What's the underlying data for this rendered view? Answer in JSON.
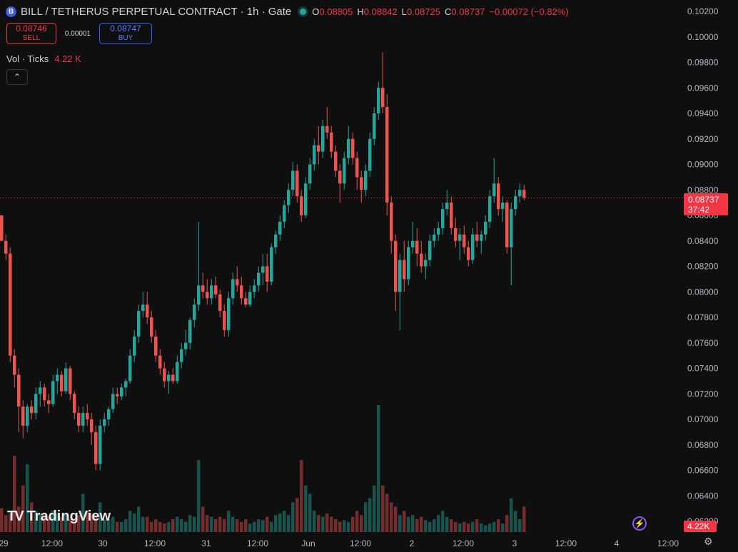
{
  "header": {
    "symbol_icon": "B",
    "title": "BILL / TETHERUS PERPETUAL CONTRACT · 1h · Gate",
    "ohlc": [
      {
        "key": "O",
        "value": "0.08805"
      },
      {
        "key": "H",
        "value": "0.08842"
      },
      {
        "key": "L",
        "value": "0.08725"
      },
      {
        "key": "C",
        "value": "0.08737"
      },
      {
        "key": "",
        "value": "−0.00072 (−0.82%)"
      }
    ]
  },
  "trade": {
    "sell_price": "0.08746",
    "sell_label": "SELL",
    "spread": "0.00001",
    "buy_price": "0.08747",
    "buy_label": "BUY"
  },
  "volume": {
    "label": "Vol · Ticks",
    "value": "4.22 K",
    "tag": "4.22K"
  },
  "collapse_icon": "chevron-up-icon",
  "current_price": {
    "price": "0.08737",
    "countdown": "37:42"
  },
  "logo": {
    "mark": "TV",
    "text": "TradingView"
  },
  "colors": {
    "up": "#26a69a",
    "down": "#ef5350",
    "background": "#0f0f0f",
    "price_tag": "#f23645"
  },
  "chart_data": {
    "type": "candlestick",
    "y_axis": {
      "ticks": [
        "0.10200",
        "0.10000",
        "0.09800",
        "0.09600",
        "0.09400",
        "0.09200",
        "0.09000",
        "0.08800",
        "0.08600",
        "0.08400",
        "0.08200",
        "0.08000",
        "0.07800",
        "0.07600",
        "0.07400",
        "0.07200",
        "0.07000",
        "0.06800",
        "0.06600",
        "0.06400",
        "0.06200"
      ],
      "range": [
        0.062,
        0.102
      ]
    },
    "x_axis": {
      "ticks": [
        "29",
        "12:00",
        "30",
        "12:00",
        "31",
        "12:00",
        "Jun",
        "12:00",
        "2",
        "12:00",
        "3",
        "12:00",
        "4",
        "12:00"
      ]
    },
    "current_price_line": 0.08737,
    "candles": [
      [
        0.086,
        0.086,
        0.084,
        0.084
      ],
      [
        0.084,
        0.0845,
        0.0825,
        0.083
      ],
      [
        0.083,
        0.0835,
        0.0745,
        0.075
      ],
      [
        0.075,
        0.0755,
        0.0725,
        0.0735
      ],
      [
        0.0735,
        0.074,
        0.069,
        0.071
      ],
      [
        0.071,
        0.0715,
        0.0685,
        0.0695
      ],
      [
        0.0695,
        0.0712,
        0.069,
        0.071
      ],
      [
        0.071,
        0.0715,
        0.07,
        0.0705
      ],
      [
        0.0705,
        0.0725,
        0.07,
        0.072
      ],
      [
        0.072,
        0.073,
        0.071,
        0.0725
      ],
      [
        0.0725,
        0.0728,
        0.071,
        0.0715
      ],
      [
        0.0715,
        0.072,
        0.0705,
        0.0712
      ],
      [
        0.0712,
        0.0735,
        0.071,
        0.073
      ],
      [
        0.073,
        0.074,
        0.072,
        0.0735
      ],
      [
        0.0735,
        0.0738,
        0.0718,
        0.0722
      ],
      [
        0.0722,
        0.0745,
        0.072,
        0.074
      ],
      [
        0.074,
        0.0742,
        0.0715,
        0.072
      ],
      [
        0.072,
        0.0722,
        0.07,
        0.0705
      ],
      [
        0.0705,
        0.071,
        0.069,
        0.0695
      ],
      [
        0.0695,
        0.071,
        0.069,
        0.0705
      ],
      [
        0.0705,
        0.0712,
        0.0695,
        0.07
      ],
      [
        0.07,
        0.0705,
        0.068,
        0.069
      ],
      [
        0.069,
        0.0695,
        0.066,
        0.0665
      ],
      [
        0.0665,
        0.07,
        0.066,
        0.0695
      ],
      [
        0.0695,
        0.0705,
        0.069,
        0.07
      ],
      [
        0.07,
        0.071,
        0.0695,
        0.0708
      ],
      [
        0.0708,
        0.0725,
        0.0705,
        0.072
      ],
      [
        0.072,
        0.0725,
        0.0712,
        0.0718
      ],
      [
        0.0718,
        0.0728,
        0.0715,
        0.0725
      ],
      [
        0.0725,
        0.0732,
        0.0718,
        0.073
      ],
      [
        0.073,
        0.0755,
        0.0728,
        0.075
      ],
      [
        0.075,
        0.077,
        0.0745,
        0.0765
      ],
      [
        0.0765,
        0.079,
        0.076,
        0.0785
      ],
      [
        0.0785,
        0.08,
        0.078,
        0.079
      ],
      [
        0.079,
        0.08,
        0.0775,
        0.078
      ],
      [
        0.078,
        0.0785,
        0.076,
        0.0765
      ],
      [
        0.0765,
        0.077,
        0.0745,
        0.075
      ],
      [
        0.075,
        0.0755,
        0.0735,
        0.074
      ],
      [
        0.074,
        0.0745,
        0.0725,
        0.073
      ],
      [
        0.073,
        0.0738,
        0.072,
        0.0735
      ],
      [
        0.0735,
        0.074,
        0.0728,
        0.073
      ],
      [
        0.073,
        0.075,
        0.0728,
        0.0745
      ],
      [
        0.0745,
        0.076,
        0.074,
        0.0755
      ],
      [
        0.0755,
        0.077,
        0.075,
        0.076
      ],
      [
        0.076,
        0.078,
        0.0755,
        0.0778
      ],
      [
        0.0778,
        0.0795,
        0.0772,
        0.079
      ],
      [
        0.079,
        0.0855,
        0.0785,
        0.0805
      ],
      [
        0.0805,
        0.0815,
        0.0795,
        0.08
      ],
      [
        0.08,
        0.081,
        0.079,
        0.0795
      ],
      [
        0.0795,
        0.081,
        0.079,
        0.0805
      ],
      [
        0.0805,
        0.0812,
        0.0795,
        0.0798
      ],
      [
        0.0798,
        0.0802,
        0.078,
        0.0785
      ],
      [
        0.0785,
        0.079,
        0.0765,
        0.077
      ],
      [
        0.077,
        0.08,
        0.0765,
        0.0795
      ],
      [
        0.0795,
        0.0815,
        0.079,
        0.081
      ],
      [
        0.081,
        0.082,
        0.08,
        0.0805
      ],
      [
        0.0805,
        0.0812,
        0.079,
        0.0795
      ],
      [
        0.0795,
        0.08,
        0.0788,
        0.079
      ],
      [
        0.079,
        0.0805,
        0.0788,
        0.08
      ],
      [
        0.08,
        0.081,
        0.0795,
        0.0805
      ],
      [
        0.0805,
        0.082,
        0.08,
        0.0815
      ],
      [
        0.0815,
        0.083,
        0.0805,
        0.082
      ],
      [
        0.082,
        0.083,
        0.08,
        0.0808
      ],
      [
        0.0808,
        0.0838,
        0.0805,
        0.0835
      ],
      [
        0.0835,
        0.0848,
        0.083,
        0.0845
      ],
      [
        0.0845,
        0.086,
        0.084,
        0.0855
      ],
      [
        0.0855,
        0.0872,
        0.085,
        0.0868
      ],
      [
        0.0868,
        0.0885,
        0.0862,
        0.088
      ],
      [
        0.088,
        0.0902,
        0.0875,
        0.0895
      ],
      [
        0.0895,
        0.09,
        0.087,
        0.0875
      ],
      [
        0.0875,
        0.088,
        0.0855,
        0.086
      ],
      [
        0.086,
        0.089,
        0.0858,
        0.0885
      ],
      [
        0.0885,
        0.0905,
        0.088,
        0.09
      ],
      [
        0.09,
        0.092,
        0.0895,
        0.0915
      ],
      [
        0.0915,
        0.093,
        0.09,
        0.091
      ],
      [
        0.091,
        0.0935,
        0.0905,
        0.093
      ],
      [
        0.093,
        0.0945,
        0.092,
        0.0925
      ],
      [
        0.0925,
        0.093,
        0.0905,
        0.091
      ],
      [
        0.091,
        0.0915,
        0.089,
        0.0895
      ],
      [
        0.0895,
        0.09,
        0.087,
        0.0885
      ],
      [
        0.0885,
        0.091,
        0.088,
        0.0905
      ],
      [
        0.0905,
        0.093,
        0.09,
        0.092
      ],
      [
        0.092,
        0.0925,
        0.09,
        0.0905
      ],
      [
        0.0905,
        0.091,
        0.088,
        0.089
      ],
      [
        0.089,
        0.0895,
        0.087,
        0.088
      ],
      [
        0.088,
        0.09,
        0.0875,
        0.0895
      ],
      [
        0.0895,
        0.0925,
        0.089,
        0.092
      ],
      [
        0.092,
        0.0945,
        0.0915,
        0.094
      ],
      [
        0.094,
        0.0965,
        0.0935,
        0.096
      ],
      [
        0.096,
        0.0988,
        0.094,
        0.0945
      ],
      [
        0.0945,
        0.0955,
        0.086,
        0.087
      ],
      [
        0.087,
        0.0875,
        0.083,
        0.084
      ],
      [
        0.084,
        0.0845,
        0.0785,
        0.08
      ],
      [
        0.08,
        0.083,
        0.077,
        0.0825
      ],
      [
        0.0825,
        0.084,
        0.08,
        0.081
      ],
      [
        0.081,
        0.084,
        0.0805,
        0.0835
      ],
      [
        0.0835,
        0.0855,
        0.083,
        0.084
      ],
      [
        0.084,
        0.085,
        0.082,
        0.083
      ],
      [
        0.083,
        0.084,
        0.0815,
        0.082
      ],
      [
        0.082,
        0.083,
        0.081,
        0.0825
      ],
      [
        0.0825,
        0.0845,
        0.082,
        0.084
      ],
      [
        0.084,
        0.085,
        0.0835,
        0.0845
      ],
      [
        0.0845,
        0.0855,
        0.084,
        0.085
      ],
      [
        0.085,
        0.087,
        0.0845,
        0.0865
      ],
      [
        0.0865,
        0.088,
        0.086,
        0.087
      ],
      [
        0.087,
        0.0875,
        0.0845,
        0.085
      ],
      [
        0.085,
        0.0858,
        0.0835,
        0.084
      ],
      [
        0.084,
        0.085,
        0.0825,
        0.0845
      ],
      [
        0.0845,
        0.0852,
        0.083,
        0.0835
      ],
      [
        0.0835,
        0.084,
        0.082,
        0.0825
      ],
      [
        0.0825,
        0.085,
        0.0822,
        0.0845
      ],
      [
        0.0845,
        0.0855,
        0.0835,
        0.084
      ],
      [
        0.084,
        0.0848,
        0.083,
        0.0845
      ],
      [
        0.0845,
        0.086,
        0.084,
        0.0855
      ],
      [
        0.0855,
        0.088,
        0.085,
        0.0875
      ],
      [
        0.0875,
        0.0905,
        0.087,
        0.0885
      ],
      [
        0.0885,
        0.089,
        0.086,
        0.0865
      ],
      [
        0.0865,
        0.0875,
        0.0855,
        0.087
      ],
      [
        0.087,
        0.0872,
        0.083,
        0.0835
      ],
      [
        0.0835,
        0.087,
        0.0805,
        0.0865
      ],
      [
        0.0865,
        0.088,
        0.086,
        0.0875
      ],
      [
        0.0875,
        0.0885,
        0.087,
        0.088
      ],
      [
        0.088,
        0.0884,
        0.0872,
        0.0874
      ]
    ],
    "volumes": [
      0.28,
      0.2,
      0.22,
      0.9,
      0.3,
      0.55,
      0.8,
      0.35,
      0.25,
      0.22,
      0.2,
      0.18,
      0.25,
      0.22,
      0.18,
      0.2,
      0.15,
      0.15,
      0.2,
      0.45,
      0.25,
      0.22,
      0.2,
      0.35,
      0.15,
      0.15,
      0.18,
      0.12,
      0.12,
      0.15,
      0.25,
      0.22,
      0.3,
      0.18,
      0.18,
      0.12,
      0.15,
      0.12,
      0.1,
      0.12,
      0.15,
      0.18,
      0.15,
      0.12,
      0.2,
      0.18,
      0.85,
      0.3,
      0.2,
      0.18,
      0.15,
      0.18,
      0.15,
      0.25,
      0.18,
      0.15,
      0.12,
      0.15,
      0.1,
      0.12,
      0.15,
      0.14,
      0.18,
      0.12,
      0.2,
      0.22,
      0.25,
      0.2,
      0.35,
      0.4,
      0.85,
      0.55,
      0.45,
      0.25,
      0.2,
      0.18,
      0.22,
      0.18,
      0.15,
      0.12,
      0.14,
      0.12,
      0.18,
      0.25,
      0.2,
      0.35,
      0.4,
      0.55,
      1.5,
      0.55,
      0.45,
      0.35,
      0.3,
      0.2,
      0.25,
      0.18,
      0.2,
      0.15,
      0.18,
      0.14,
      0.12,
      0.15,
      0.2,
      0.25,
      0.18,
      0.15,
      0.12,
      0.1,
      0.12,
      0.1,
      0.12,
      0.15,
      0.1,
      0.08,
      0.1,
      0.12,
      0.15,
      0.1,
      0.2,
      0.4,
      0.25,
      0.15,
      0.3,
      0.2
    ]
  }
}
